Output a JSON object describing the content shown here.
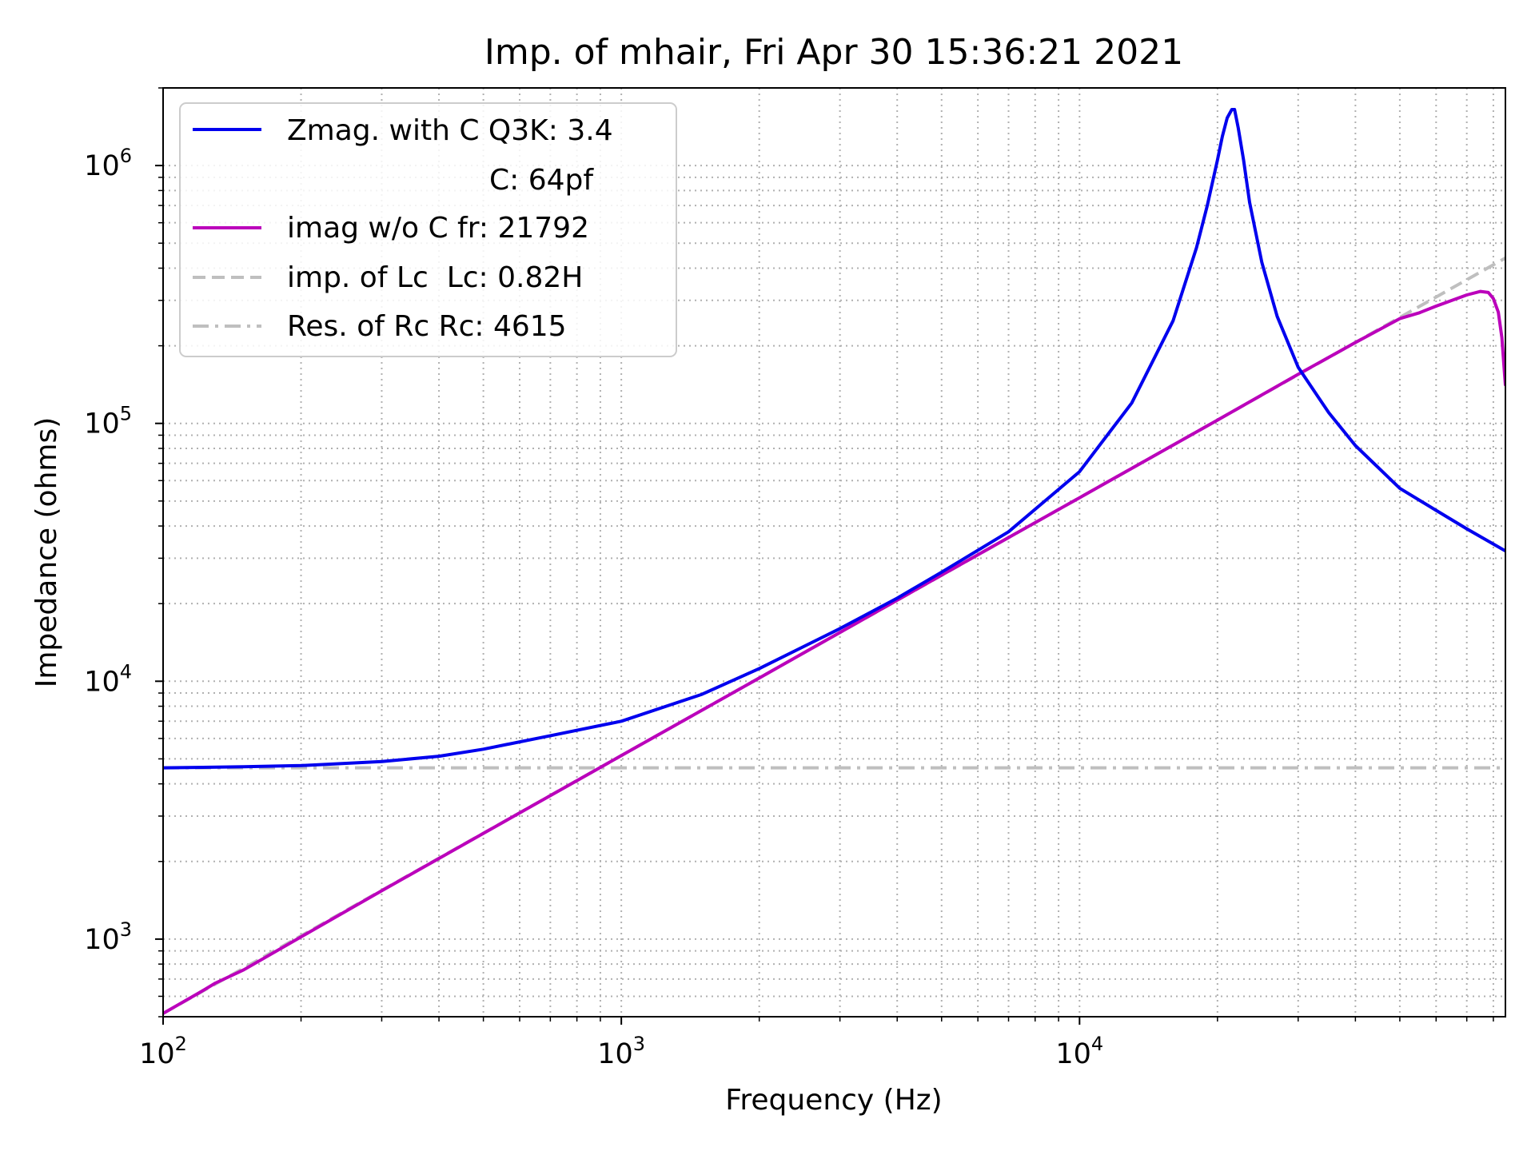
{
  "chart_data": {
    "type": "line",
    "title": "Imp. of mhair, Fri Apr 30 15:36:21 2021",
    "xlabel": "Frequency (Hz)",
    "ylabel": "Impedance (ohms)",
    "xscale": "log",
    "yscale": "log",
    "xlim": [
      100,
      85000
    ],
    "ylim": [
      500,
      2000000
    ],
    "grid": "both (major and minor), dotted",
    "legend_position": "upper-left",
    "x_tick_labels": [
      {
        "value": 100,
        "base": "10",
        "exp": "2"
      },
      {
        "value": 1000,
        "base": "10",
        "exp": "3"
      },
      {
        "value": 10000,
        "base": "10",
        "exp": "4"
      }
    ],
    "y_tick_labels": [
      {
        "value": 1000,
        "base": "10",
        "exp": "3"
      },
      {
        "value": 10000,
        "base": "10",
        "exp": "4"
      },
      {
        "value": 100000,
        "base": "10",
        "exp": "5"
      },
      {
        "value": 1000000,
        "base": "10",
        "exp": "6"
      }
    ],
    "legend_extra_line": "C: 64pf",
    "series": [
      {
        "name": "Zmag. with C Q3K: 3.4",
        "color": "#0000ee",
        "style": "solid",
        "x": [
          100,
          150,
          200,
          300,
          400,
          500,
          700,
          1000,
          1500,
          2000,
          3000,
          4000,
          5000,
          7000,
          10000,
          13000,
          16000,
          18000,
          19000,
          20000,
          20500,
          21000,
          21500,
          21792,
          22200,
          22800,
          23500,
          25000,
          27000,
          30000,
          35000,
          40000,
          50000,
          60000,
          70000,
          85000
        ],
        "y": [
          4615,
          4660,
          4710,
          4880,
          5120,
          5450,
          6150,
          7000,
          8900,
          11200,
          16000,
          21000,
          26500,
          38000,
          65000,
          120000,
          250000,
          480000,
          700000,
          1050000,
          1300000,
          1530000,
          1650000,
          1650000,
          1400000,
          1050000,
          720000,
          420000,
          260000,
          165000,
          110000,
          82000,
          56000,
          46000,
          39000,
          32000
        ]
      },
      {
        "name": "imag w/o C fr: 21792",
        "color": "#bb00bb",
        "style": "solid",
        "x": [
          100,
          120,
          130,
          150,
          200,
          300,
          500,
          1000,
          2000,
          5000,
          10000,
          20000,
          30000,
          40000,
          50000,
          55000,
          60000,
          65000,
          70000,
          75000,
          78000,
          80000,
          82000,
          83500,
          85000
        ],
        "y": [
          515,
          620,
          675,
          760,
          1020,
          1540,
          2570,
          5150,
          10300,
          25800,
          51500,
          103000,
          155000,
          206000,
          255000,
          268000,
          285000,
          300000,
          315000,
          325000,
          322000,
          305000,
          270000,
          215000,
          140000
        ]
      },
      {
        "name": "imp. of Lc  Lc: 0.82H",
        "color": "#bfbfbf",
        "style": "dashed",
        "x": [
          100,
          85000
        ],
        "y": [
          515,
          438000
        ]
      },
      {
        "name": "Res. of Rc Rc: 4615",
        "color": "#bfbfbf",
        "style": "dashdot",
        "x": [
          100,
          85000
        ],
        "y": [
          4615,
          4615
        ]
      }
    ]
  }
}
